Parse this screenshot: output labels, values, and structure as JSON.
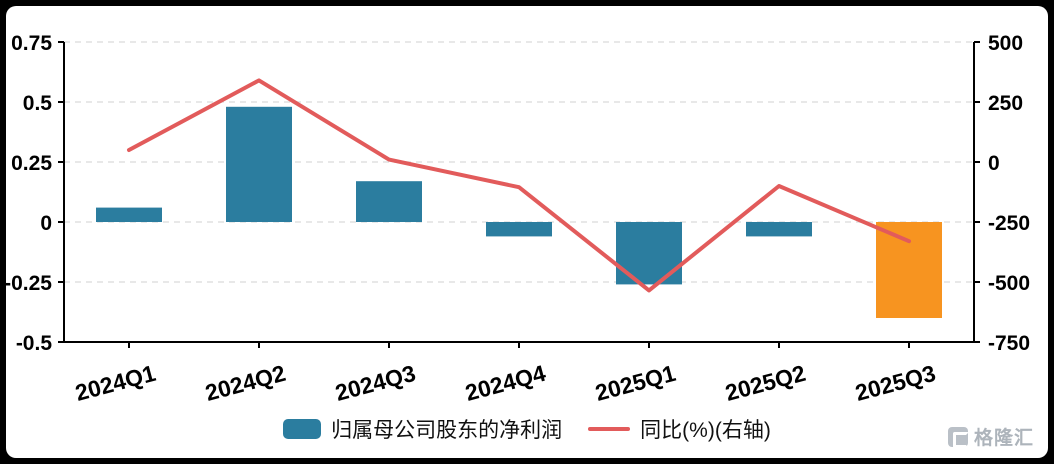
{
  "chart_data": {
    "type": "combo",
    "categories": [
      "2024Q1",
      "2024Q2",
      "2024Q3",
      "2024Q4",
      "2025Q1",
      "2025Q2",
      "2025Q3"
    ],
    "series": [
      {
        "name": "归属母公司股东的净利润",
        "type": "bar",
        "axis": "left",
        "values": [
          0.06,
          0.48,
          0.17,
          -0.06,
          -0.26,
          -0.06,
          -0.4
        ],
        "colors": [
          "#2b7d9f",
          "#2b7d9f",
          "#2b7d9f",
          "#2b7d9f",
          "#2b7d9f",
          "#2b7d9f",
          "#f79420"
        ]
      },
      {
        "name": "同比(%)(右轴)",
        "type": "line",
        "axis": "right",
        "values": [
          50,
          340,
          10,
          -105,
          -535,
          -100,
          -330
        ],
        "color": "#e25b5b"
      }
    ],
    "left_axis": {
      "tick_labels": [
        "0.75",
        "0.5",
        "0.25",
        "0",
        "-0.25",
        "-0.5"
      ],
      "tick_values": [
        0.75,
        0.5,
        0.25,
        0,
        -0.25,
        -0.5
      ],
      "range": [
        -0.5,
        0.75
      ]
    },
    "right_axis": {
      "tick_labels": [
        "500",
        "250",
        "0",
        "-250",
        "-500",
        "-750"
      ],
      "tick_values": [
        500,
        250,
        0,
        -250,
        -500,
        -750
      ],
      "range": [
        -750,
        500
      ]
    },
    "grid": "horizontal-dashed",
    "legend_position": "bottom-center"
  },
  "legend": {
    "bar_label": "归属母公司股东的净利润",
    "line_label": "同比(%)(右轴)"
  },
  "watermark": {
    "text": "格隆汇"
  },
  "colors": {
    "bar": "#2b7d9f",
    "bar_highlight": "#f79420",
    "line": "#e25b5b",
    "grid": "#e0e0e0",
    "axis": "#000000"
  }
}
